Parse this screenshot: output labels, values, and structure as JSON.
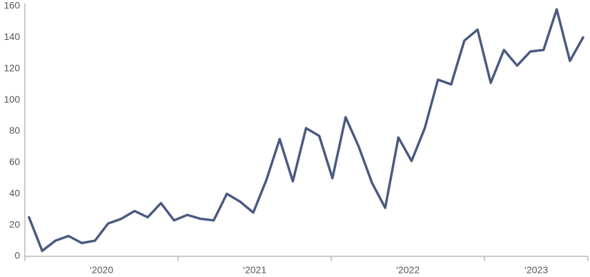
{
  "chart_data": {
    "type": "line",
    "categories": [
      null,
      null,
      null,
      null,
      null,
      null,
      null,
      null,
      null,
      null,
      null,
      null,
      null,
      null,
      null,
      null,
      null,
      null,
      null,
      null,
      null,
      null,
      null,
      null,
      null,
      null,
      null,
      null,
      null,
      null,
      null,
      null,
      null,
      null,
      null,
      null,
      null,
      null,
      null,
      null,
      null,
      null,
      null
    ],
    "year_labels": [
      "‘2020",
      "‘2021",
      "‘2022",
      "‘2023"
    ],
    "series": [
      {
        "color": "#4a5a80",
        "values": [
          25,
          3.5,
          10,
          13,
          8.5,
          10,
          21,
          24,
          29,
          25,
          34,
          23,
          26.5,
          24,
          23,
          40,
          35,
          28,
          49,
          75,
          48,
          82,
          77,
          50,
          89,
          70,
          47,
          31,
          76,
          61,
          82,
          113,
          110,
          138,
          145,
          111,
          132,
          122,
          131,
          132,
          158,
          125,
          140
        ]
      }
    ],
    "ylim": [
      0,
      160
    ],
    "yticks": [
      0,
      20,
      40,
      60,
      80,
      100,
      120,
      140,
      160
    ],
    "grid": false
  }
}
